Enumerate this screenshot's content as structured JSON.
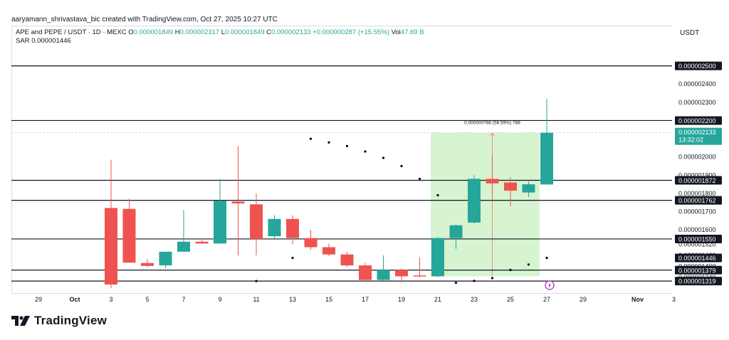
{
  "header": {
    "creator": "aaryamann_shrivastava_bic created with TradingView.com, Oct 27, 2025 10:27 UTC",
    "symbol": "APE and PEPE / USDT · 1D · MEXC",
    "o_label": "O",
    "o_value": "0.000001849",
    "h_label": "H",
    "h_value": "0.000002317",
    "l_label": "L",
    "l_value": "0.000001849",
    "c_label": "C",
    "c_value": "0.000002133",
    "change": "+0.000000287 (+15.55%)",
    "vol_label": "Vol",
    "vol_value": "47.69 B",
    "sar_label": "SAR",
    "sar_value": "0.000001446",
    "currency": "USDT"
  },
  "brand": {
    "name": "TradingView",
    "logo_icon": "tradingview-logo-icon"
  },
  "colors": {
    "up": "#26a69a",
    "down": "#ef5350",
    "sar": "#000000",
    "range_fill": "#c8f0c0",
    "range_line": "#f48a8a"
  },
  "chart_data": {
    "type": "candlestick",
    "ylim": [
      1.3e-06,
      2.6e-06
    ],
    "grid": false,
    "x_tick_labels": [
      "29",
      "Oct",
      "3",
      "5",
      "7",
      "9",
      "11",
      "13",
      "15",
      "17",
      "19",
      "21",
      "23",
      "25",
      "27",
      "29",
      "Nov",
      "3"
    ],
    "x_ticks_day_index": [
      -2,
      0,
      2,
      4,
      6,
      8,
      10,
      12,
      14,
      16,
      18,
      20,
      22,
      24,
      26,
      28,
      31,
      33
    ],
    "candles": [
      {
        "day": 2,
        "o": 1.72e-06,
        "h": 1.985e-06,
        "l": 1.28e-06,
        "c": 1.3e-06
      },
      {
        "day": 3,
        "o": 1.715e-06,
        "h": 1.77e-06,
        "l": 1.42e-06,
        "c": 1.42e-06
      },
      {
        "day": 4,
        "o": 1.418e-06,
        "h": 1.44e-06,
        "l": 1.395e-06,
        "c": 1.402e-06
      },
      {
        "day": 5,
        "o": 1.405e-06,
        "h": 1.48e-06,
        "l": 1.39e-06,
        "c": 1.48e-06
      },
      {
        "day": 6,
        "o": 1.48e-06,
        "h": 1.71e-06,
        "l": 1.48e-06,
        "c": 1.535e-06
      },
      {
        "day": 7,
        "o": 1.535e-06,
        "h": 1.545e-06,
        "l": 1.525e-06,
        "c": 1.525e-06
      },
      {
        "day": 8,
        "o": 1.525e-06,
        "h": 1.88e-06,
        "l": 1.525e-06,
        "c": 1.76e-06
      },
      {
        "day": 9,
        "o": 1.755e-06,
        "h": 2.06e-06,
        "l": 1.46e-06,
        "c": 1.745e-06
      },
      {
        "day": 10,
        "o": 1.74e-06,
        "h": 1.8e-06,
        "l": 1.46e-06,
        "c": 1.55e-06
      },
      {
        "day": 11,
        "o": 1.565e-06,
        "h": 1.68e-06,
        "l": 1.545e-06,
        "c": 1.66e-06
      },
      {
        "day": 12,
        "o": 1.66e-06,
        "h": 1.68e-06,
        "l": 1.52e-06,
        "c": 1.555e-06
      },
      {
        "day": 13,
        "o": 1.555e-06,
        "h": 1.6e-06,
        "l": 1.49e-06,
        "c": 1.505e-06
      },
      {
        "day": 14,
        "o": 1.505e-06,
        "h": 1.525e-06,
        "l": 1.455e-06,
        "c": 1.465e-06
      },
      {
        "day": 15,
        "o": 1.465e-06,
        "h": 1.48e-06,
        "l": 1.395e-06,
        "c": 1.405e-06
      },
      {
        "day": 16,
        "o": 1.405e-06,
        "h": 1.42e-06,
        "l": 1.32e-06,
        "c": 1.325e-06
      },
      {
        "day": 17,
        "o": 1.325e-06,
        "h": 1.46e-06,
        "l": 1.32e-06,
        "c": 1.38e-06
      },
      {
        "day": 18,
        "o": 1.38e-06,
        "h": 1.39e-06,
        "l": 1.31e-06,
        "c": 1.345e-06
      },
      {
        "day": 19,
        "o": 1.35e-06,
        "h": 1.45e-06,
        "l": 1.34e-06,
        "c": 1.345e-06
      },
      {
        "day": 20,
        "o": 1.345e-06,
        "h": 1.56e-06,
        "l": 1.34e-06,
        "c": 1.555e-06
      },
      {
        "day": 21,
        "o": 1.555e-06,
        "h": 1.63e-06,
        "l": 1.495e-06,
        "c": 1.625e-06
      },
      {
        "day": 22,
        "o": 1.64e-06,
        "h": 1.9e-06,
        "l": 1.635e-06,
        "c": 1.88e-06
      },
      {
        "day": 23,
        "o": 1.88e-06,
        "h": 2.01e-06,
        "l": 1.77e-06,
        "c": 1.855e-06
      },
      {
        "day": 24,
        "o": 1.86e-06,
        "h": 1.89e-06,
        "l": 1.73e-06,
        "c": 1.815e-06
      },
      {
        "day": 25,
        "o": 1.805e-06,
        "h": 1.865e-06,
        "l": 1.78e-06,
        "c": 1.85e-06
      },
      {
        "day": 26,
        "o": 1.849e-06,
        "h": 2.317e-06,
        "l": 1.849e-06,
        "c": 2.133e-06
      }
    ],
    "sar": [
      {
        "day": 10,
        "v": 1.319e-06
      },
      {
        "day": 12,
        "v": 1.446e-06
      },
      {
        "day": 13,
        "v": 2.1e-06
      },
      {
        "day": 14,
        "v": 2.08e-06
      },
      {
        "day": 15,
        "v": 2.06e-06
      },
      {
        "day": 16,
        "v": 2.03e-06
      },
      {
        "day": 17,
        "v": 1.995e-06
      },
      {
        "day": 18,
        "v": 1.95e-06
      },
      {
        "day": 19,
        "v": 1.88e-06
      },
      {
        "day": 20,
        "v": 1.79e-06
      },
      {
        "day": 21,
        "v": 1.31e-06
      },
      {
        "day": 22,
        "v": 1.32e-06
      },
      {
        "day": 23,
        "v": 1.335e-06
      },
      {
        "day": 24,
        "v": 1.38e-06
      },
      {
        "day": 25,
        "v": 1.41e-06
      },
      {
        "day": 26,
        "v": 1.446e-06
      }
    ],
    "horizontal_levels": [
      {
        "value": 2.5e-06,
        "label": "0.000002500"
      },
      {
        "value": 2.2e-06,
        "label": "0.000002200"
      },
      {
        "value": 1.872e-06,
        "label": "0.000001872"
      },
      {
        "value": 1.762e-06,
        "label": "0.000001762"
      },
      {
        "value": 1.55e-06,
        "label": "0.000001550"
      },
      {
        "value": 1.379e-06,
        "label": "0.000001379"
      },
      {
        "value": 1.319e-06,
        "label": "0.000001319"
      }
    ],
    "axis_labels": [
      {
        "value": 2.4e-06,
        "label": "0.000002400"
      },
      {
        "value": 2.3e-06,
        "label": "0.000002300"
      },
      {
        "value": 2e-06,
        "label": "0.000002000"
      },
      {
        "value": 1.9e-06,
        "label": "0.000001900"
      },
      {
        "value": 1.8e-06,
        "label": "0.000001800"
      },
      {
        "value": 1.7e-06,
        "label": "0.000001700"
      },
      {
        "value": 1.6e-06,
        "label": "0.000001600"
      },
      {
        "value": 1.52e-06,
        "label": "0.000001520"
      },
      {
        "value": 1.46e-06,
        "label": "0.000001460"
      },
      {
        "value": 1.4e-06,
        "label": "0.000001400"
      },
      {
        "value": 1.34e-06,
        "label": "0.000001340"
      }
    ],
    "marker_labels": [
      {
        "value": 1.446e-06,
        "label": "0.000001446"
      }
    ],
    "last_price": {
      "value": 2.133e-06,
      "label": "0.000002133",
      "countdown": "13:32:02"
    },
    "measure": {
      "day_start": 20,
      "day_end": 26,
      "price_low": 1.345e-06,
      "price_high": 2.133e-06,
      "label": "0.000000788 (58.59%) 788"
    },
    "event_marker": {
      "day": 26,
      "icon": "lightning-icon"
    }
  }
}
